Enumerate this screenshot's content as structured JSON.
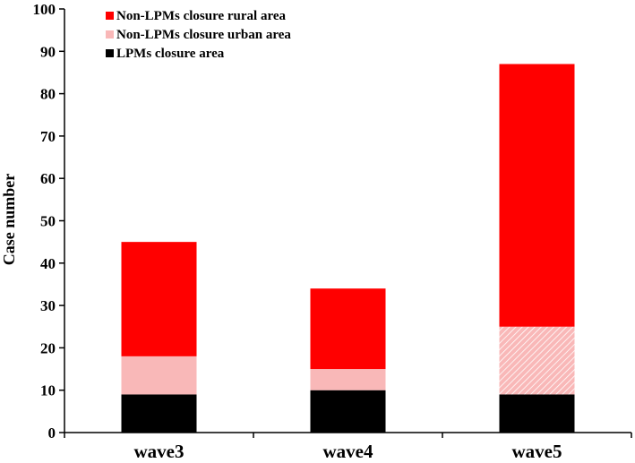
{
  "chart_data": {
    "type": "bar",
    "stacked": true,
    "title": "",
    "xlabel": "",
    "ylabel": "Case number",
    "ylim": [
      0,
      100
    ],
    "yticks": [
      0,
      10,
      20,
      30,
      40,
      50,
      60,
      70,
      80,
      90,
      100
    ],
    "grid": false,
    "legend_position": "top-left",
    "categories": [
      "wave3",
      "wave4",
      "wave5"
    ],
    "series": [
      {
        "name": "LPMs closure area",
        "values": [
          9,
          10,
          9
        ],
        "color": "#000000"
      },
      {
        "name": "Non-LPMs closure urban area",
        "values": [
          9,
          5,
          16
        ],
        "color": "#f9b8b8"
      },
      {
        "name": "Non-LPMs closure rural area",
        "values": [
          27,
          19,
          62
        ],
        "color": "#ff0000"
      }
    ],
    "legend_order": [
      "Non-LPMs closure rural area",
      "Non-LPMs closure urban area",
      "LPMs closure area"
    ]
  }
}
